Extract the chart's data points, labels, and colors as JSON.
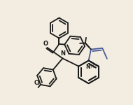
{
  "bg_color": "#f2ede0",
  "line_color": "#1a1a1a",
  "highlight_color": "#4a5a9a",
  "lw": 1.3,
  "figsize": [
    1.9,
    1.5
  ],
  "dpi": 100,
  "xlim": [
    0.5,
    10.5
  ],
  "ylim": [
    0.5,
    8.5
  ]
}
